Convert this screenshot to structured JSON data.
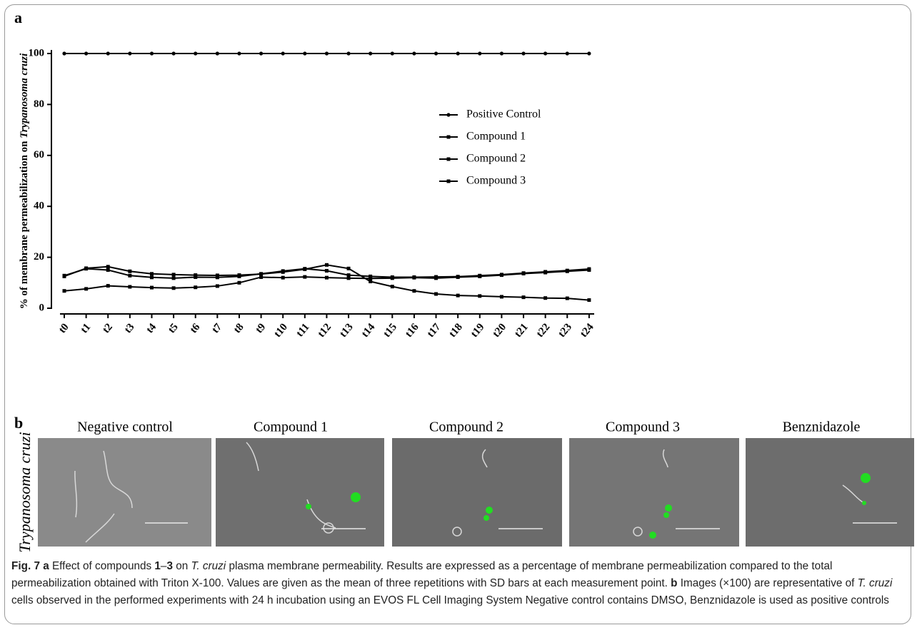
{
  "panel_a": {
    "label": "a"
  },
  "chart_data": {
    "type": "line",
    "ylabel": "% of membrane permeabilization on",
    "ylabel_species": "Trypanosoma cruzi",
    "categories": [
      "t0",
      "t1",
      "t2",
      "t3",
      "t4",
      "t5",
      "t6",
      "t7",
      "t8",
      "t9",
      "t10",
      "t11",
      "t12",
      "t13",
      "t14",
      "t15",
      "t16",
      "t17",
      "t18",
      "t19",
      "t20",
      "t21",
      "t22",
      "t23",
      "t24"
    ],
    "series": [
      {
        "name": "Positive Control",
        "color": "#000000",
        "marker": "circle",
        "values": [
          100,
          100,
          100,
          100,
          100,
          100,
          100,
          100,
          100,
          100,
          100,
          100,
          100,
          100,
          100,
          100,
          100,
          100,
          100,
          100,
          100,
          100,
          100,
          100,
          100
        ]
      },
      {
        "name": "Compound 1",
        "color": "#000000",
        "marker": "square",
        "values": [
          12.5,
          15.7,
          16.3,
          14.5,
          13.5,
          13.2,
          13.0,
          12.9,
          13.0,
          13.4,
          14.2,
          15.3,
          17.0,
          15.6,
          10.5,
          8.5,
          6.8,
          5.6,
          5.0,
          4.8,
          4.5,
          4.3,
          4.0,
          3.9,
          3.2
        ]
      },
      {
        "name": "Compound 2",
        "color": "#000000",
        "marker": "square",
        "values": [
          12.8,
          15.5,
          15.0,
          12.8,
          12.1,
          11.8,
          12.2,
          12.1,
          12.5,
          13.5,
          14.6,
          15.5,
          14.7,
          13.0,
          12.5,
          12.2,
          12.2,
          12.3,
          12.4,
          12.8,
          13.2,
          13.8,
          14.3,
          14.8,
          15.4
        ]
      },
      {
        "name": "Compound 3",
        "color": "#000000",
        "marker": "square",
        "values": [
          6.8,
          7.6,
          8.8,
          8.4,
          8.1,
          7.9,
          8.2,
          8.7,
          10.0,
          12.2,
          12.0,
          12.3,
          12.0,
          11.8,
          11.7,
          11.8,
          12.0,
          11.8,
          12.2,
          12.5,
          13.0,
          13.6,
          14.0,
          14.5,
          15.0
        ]
      }
    ],
    "ylim": [
      0,
      100
    ],
    "yticks": [
      0,
      20,
      40,
      60,
      80,
      100
    ],
    "grid": false,
    "legend": "center-right"
  },
  "panel_b": {
    "label": "b",
    "row_label": "Trypanosoma cruzi",
    "columns": [
      "Negative control",
      "Compound 1",
      "Compound 2",
      "Compound 3",
      "Benznidazole"
    ]
  },
  "caption": {
    "parts": [
      "Fig. 7",
      "a",
      "Effect of compounds",
      "1",
      "–",
      "3",
      "on",
      "T. cruzi",
      "plasma membrane permeability. Results are expressed as a percentage of membrane permeabilization compared to the total permeabilization obtained with Triton X-100. Values are given as the mean of three repetitions with SD bars at each measurement point.",
      "b",
      "Images (×100) are representative of",
      "T. cruzi",
      "cells observed in the performed experiments with 24 h incubation using an EVOS FL Cell Imaging System Negative control contains DMSO, Benznidazole is used as positive controls"
    ]
  }
}
